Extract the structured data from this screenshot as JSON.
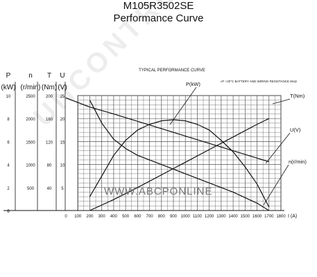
{
  "title_line1": "M105R3502SE",
  "title_line2": "Performance Curve",
  "chart_data": {
    "type": "line",
    "title": "TYPICAL PERFORMANCE CURVE",
    "note": "AT +20°C  BATTERY AND WIRING RESISTANCE 8mΩ",
    "xlabel": "I (A)",
    "xlim": [
      0,
      1800
    ],
    "x_ticks": [
      0,
      100,
      200,
      300,
      400,
      500,
      600,
      700,
      800,
      900,
      1000,
      1100,
      1200,
      1300,
      1400,
      1500,
      1600,
      1700,
      1800
    ],
    "axes": [
      {
        "name": "P",
        "unit": "(kW)",
        "ylim": [
          0,
          10
        ],
        "ticks": [
          0,
          2,
          4,
          6,
          8,
          10
        ]
      },
      {
        "name": "n",
        "unit": "(r/min)",
        "ylim": [
          0,
          2500
        ],
        "ticks": [
          500,
          1000,
          1500,
          2000,
          2500
        ]
      },
      {
        "name": "T",
        "unit": "(Nm)",
        "ylim": [
          0,
          200
        ],
        "ticks": [
          40,
          80,
          120,
          160,
          200
        ]
      },
      {
        "name": "U",
        "unit": "(V)",
        "ylim": [
          0,
          25
        ],
        "ticks": [
          5,
          10,
          15,
          20,
          25
        ]
      }
    ],
    "series": [
      {
        "name": "P(kW)",
        "axis": "P",
        "x": [
          200,
          300,
          400,
          500,
          600,
          700,
          800,
          900,
          1000,
          1100,
          1200,
          1300,
          1400,
          1500,
          1600,
          1700
        ],
        "y": [
          1.2,
          3.0,
          4.8,
          6.1,
          7.0,
          7.5,
          7.8,
          7.9,
          7.8,
          7.5,
          7.0,
          6.1,
          5.1,
          3.8,
          2.3,
          0.3
        ]
      },
      {
        "name": "T(Nm)",
        "axis": "T",
        "x": [
          200,
          400,
          600,
          800,
          1000,
          1200,
          1400,
          1600,
          1700
        ],
        "y": [
          0,
          19,
          40,
          62,
          84,
          106,
          128,
          150,
          160
        ]
      },
      {
        "name": "U(V)",
        "axis": "U",
        "x": [
          0,
          200,
          400,
          600,
          800,
          1000,
          1200,
          1400,
          1600,
          1700
        ],
        "y": [
          24.5,
          22.5,
          21.0,
          19.4,
          17.8,
          16.2,
          14.6,
          13.0,
          11.4,
          10.6
        ]
      },
      {
        "name": "n(r/min)",
        "axis": "n",
        "x": [
          200,
          250,
          300,
          400,
          500,
          600,
          800,
          1000,
          1200,
          1400,
          1600,
          1700
        ],
        "y": [
          2400,
          2150,
          1900,
          1550,
          1350,
          1200,
          1000,
          800,
          600,
          400,
          160,
          0
        ]
      }
    ],
    "grid": true
  },
  "watermark_text": "UNCONTROLLED COPY",
  "site_text": "WWW.ABCPONLINE"
}
